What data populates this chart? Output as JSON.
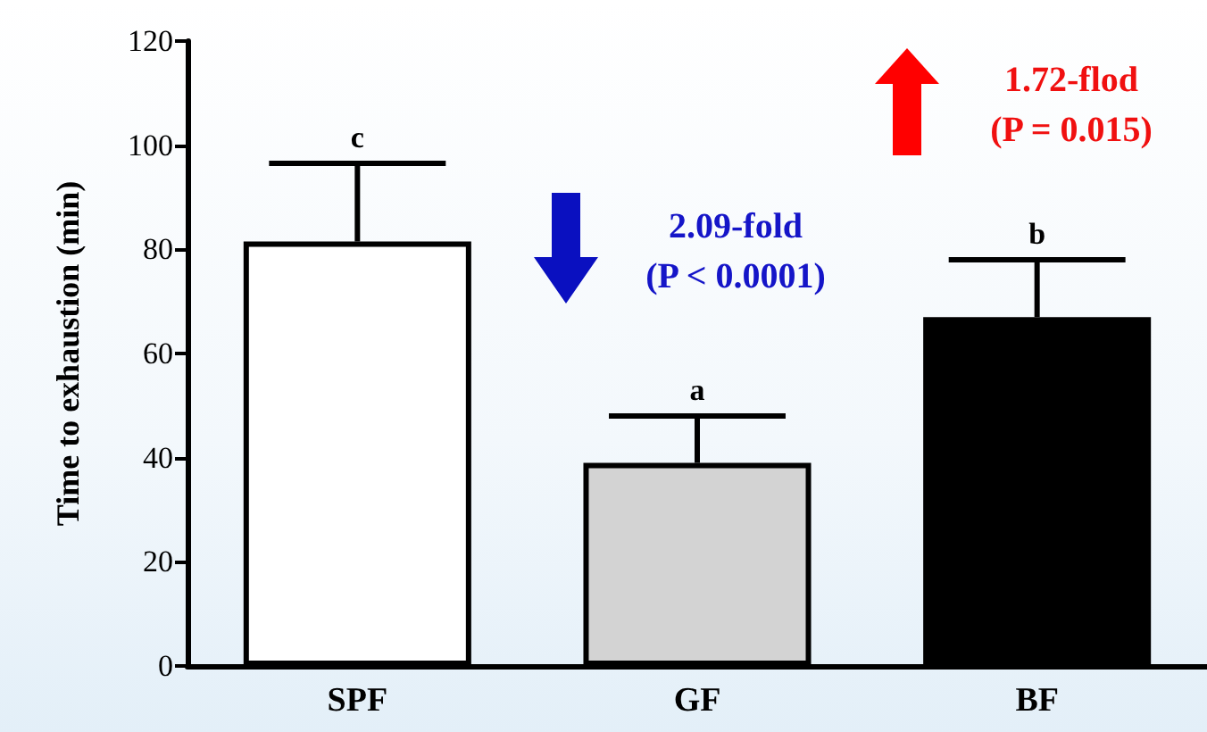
{
  "chart_data": {
    "type": "bar",
    "ylabel": "Time to exhaustion (min)",
    "categories": [
      "SPF",
      "GF",
      "BF"
    ],
    "values": [
      81.5,
      39,
      67
    ],
    "colors": [
      "#ffffff",
      "#d3d3d3",
      "#000000"
    ],
    "errors": [
      15,
      9,
      11
    ],
    "ylim": [
      0,
      120
    ],
    "yticks": [
      0,
      20,
      40,
      60,
      80,
      100,
      120
    ],
    "grid": false,
    "annotations": [
      "c",
      "a",
      "b",
      "2.09-fold\n(P < 0.0001)",
      "1.72-flod\n(P = 0.015)"
    ]
  }
}
